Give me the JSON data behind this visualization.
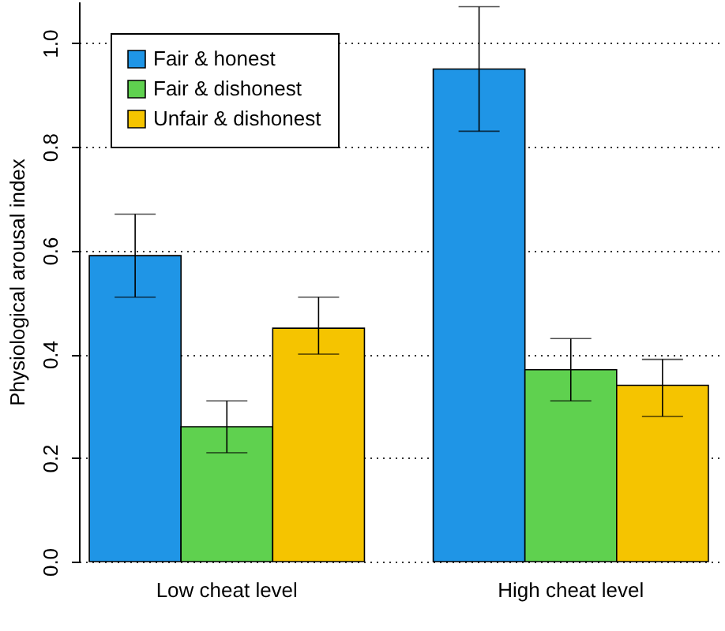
{
  "chart_data": {
    "type": "bar",
    "ylabel": "Physiological arousal index",
    "categories": [
      "Low cheat level",
      "High cheat level"
    ],
    "series": [
      {
        "name": "Fair & honest",
        "color": "#1f95e6",
        "values": [
          0.59,
          0.95
        ],
        "errors": [
          [
            0.51,
            0.67
          ],
          [
            0.83,
            1.07
          ]
        ]
      },
      {
        "name": "Fair & dishonest",
        "color": "#5fd14f",
        "values": [
          0.26,
          0.37
        ],
        "errors": [
          [
            0.21,
            0.31
          ],
          [
            0.31,
            0.43
          ]
        ]
      },
      {
        "name": "Unfair & dishonest",
        "color": "#f5c400",
        "values": [
          0.45,
          0.34
        ],
        "errors": [
          [
            0.4,
            0.51
          ],
          [
            0.28,
            0.39
          ]
        ]
      }
    ],
    "ylim": [
      0,
      1.08
    ],
    "yticks": [
      {
        "value": 0,
        "label": "0.0"
      },
      {
        "value": 0.2,
        "label": "0.2"
      },
      {
        "value": 0.4,
        "label": "0.4"
      },
      {
        "value": 0.6,
        "label": "0.6"
      },
      {
        "value": 0.8,
        "label": "0.8"
      },
      {
        "value": 1,
        "label": "1.0"
      }
    ],
    "grid": "y",
    "legend": "top left"
  }
}
